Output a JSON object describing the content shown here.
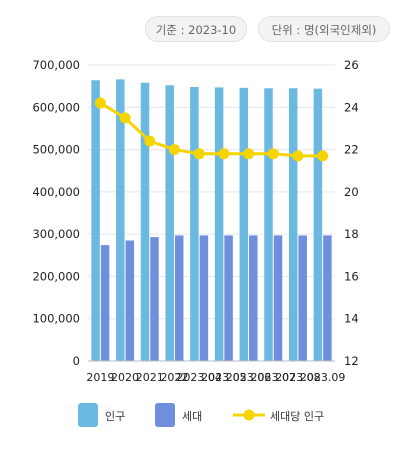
{
  "header": {
    "base_date": "기준 : 2023-10",
    "unit": "단위 : 명(외국인제외)"
  },
  "legend": {
    "population": "인구",
    "households": "세대",
    "per_household": "세대당 인구"
  },
  "colors": {
    "population": "#6bb9e0",
    "households": "#6f8fdc",
    "per_household": "#f5d400"
  },
  "chart_data": {
    "type": "bar",
    "categories": [
      "2019",
      "2020",
      "2021",
      "2022",
      "2023.04",
      "2023.05",
      "2023.06",
      "2023.07",
      "2023.08",
      "2023.09"
    ],
    "series": [
      {
        "name": "인구",
        "type": "bar",
        "axis": "left",
        "values": [
          664000,
          666000,
          658000,
          652000,
          648000,
          647000,
          646000,
          645000,
          645000,
          644000
        ]
      },
      {
        "name": "세대",
        "type": "bar",
        "axis": "left",
        "values": [
          274000,
          285000,
          293000,
          297000,
          297000,
          297000,
          297000,
          297000,
          297000,
          297000
        ]
      },
      {
        "name": "세대당 인구",
        "type": "line",
        "axis": "right",
        "values": [
          24.2,
          23.5,
          22.4,
          22.0,
          21.8,
          21.8,
          21.8,
          21.8,
          21.7,
          21.7
        ]
      }
    ],
    "y_left": {
      "min": 0,
      "max": 700000,
      "ticks": [
        "0",
        "100,000",
        "200,000",
        "300,000",
        "400,000",
        "500,000",
        "600,000",
        "700,000"
      ]
    },
    "y_right": {
      "min": 12,
      "max": 26,
      "ticks": [
        "12",
        "14",
        "16",
        "18",
        "20",
        "22",
        "24",
        "26"
      ]
    },
    "grid": true,
    "legend_position": "bottom"
  }
}
